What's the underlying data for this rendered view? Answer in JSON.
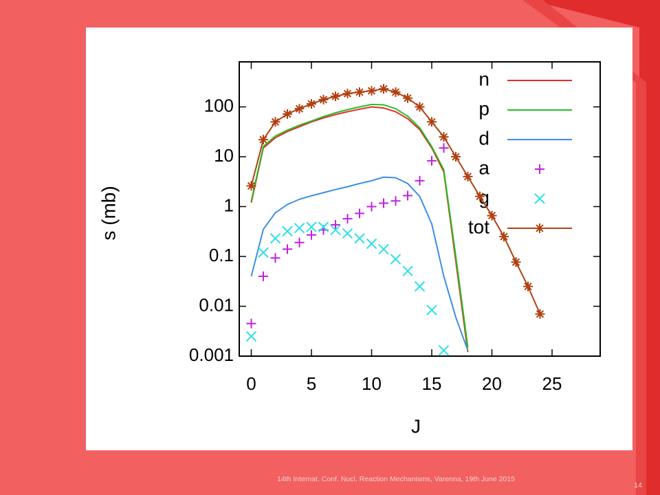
{
  "slide": {
    "footer": "14th Internat. Conf. Nucl. Reaction Mechanisms, Varenna, 19th June 2015",
    "page_number": "14"
  },
  "chart_data": {
    "type": "line",
    "ylabel": "s (mb)",
    "xlabel": "J",
    "log_y": true,
    "legend": "top right",
    "x": [
      0,
      1,
      2,
      3,
      4,
      5,
      6,
      7,
      8,
      9,
      10,
      11,
      12,
      13,
      14,
      15,
      16,
      17,
      18,
      19,
      20,
      21,
      22,
      23,
      24
    ],
    "xlim": [
      -1,
      29
    ],
    "xticks": [
      0,
      5,
      10,
      15,
      20,
      25
    ],
    "ylim": [
      0.001,
      800
    ],
    "yticks": [
      0.001,
      0.01,
      0.1,
      1,
      10,
      100
    ],
    "series": [
      {
        "name": "n",
        "color": "#e8282a",
        "style": "line",
        "values": [
          1.2,
          15,
          24,
          32,
          40,
          50,
          60,
          70,
          80,
          90,
          100,
          95,
          80,
          58,
          35,
          15,
          5,
          0.08,
          0.0012,
          null,
          null,
          null,
          null,
          null,
          null
        ]
      },
      {
        "name": "p",
        "color": "#22c022",
        "style": "line",
        "values": [
          1.3,
          16,
          26,
          34,
          43,
          52,
          64,
          76,
          88,
          100,
          112,
          110,
          92,
          65,
          38,
          16,
          5.5,
          0.1,
          0.0015,
          null,
          null,
          null,
          null,
          null,
          null
        ]
      },
      {
        "name": "d",
        "color": "#3a8ee6",
        "style": "line",
        "values": [
          0.04,
          0.35,
          0.75,
          1.1,
          1.4,
          1.65,
          1.9,
          2.2,
          2.5,
          2.9,
          3.3,
          3.9,
          3.8,
          2.9,
          1.6,
          0.45,
          0.04,
          0.006,
          0.0013,
          null,
          null,
          null,
          null,
          null,
          null
        ]
      },
      {
        "name": "a",
        "color": "#c020e0",
        "style": "plus",
        "values": [
          0.0045,
          0.04,
          0.093,
          0.14,
          0.19,
          0.27,
          0.34,
          0.43,
          0.57,
          0.73,
          1,
          1.17,
          1.3,
          1.66,
          3.3,
          8.3,
          15,
          null,
          null,
          null,
          null,
          null,
          null,
          null,
          null
        ]
      },
      {
        "name": "g",
        "color": "#30e0e8",
        "style": "cross",
        "values": [
          0.0025,
          0.12,
          0.23,
          0.32,
          0.37,
          0.39,
          0.39,
          0.34,
          0.29,
          0.23,
          0.18,
          0.14,
          0.088,
          0.051,
          0.025,
          0.0084,
          0.0013,
          null,
          null,
          null,
          null,
          null,
          null,
          null,
          null
        ]
      },
      {
        "name": "tot",
        "color": "#b04010",
        "style": "linestar",
        "values": [
          2.6,
          22,
          50,
          72,
          92,
          115,
          140,
          163,
          185,
          198,
          210,
          230,
          198,
          150,
          100,
          50,
          25,
          10,
          4,
          1.6,
          0.66,
          0.25,
          0.077,
          0.025,
          0.007
        ]
      }
    ]
  }
}
